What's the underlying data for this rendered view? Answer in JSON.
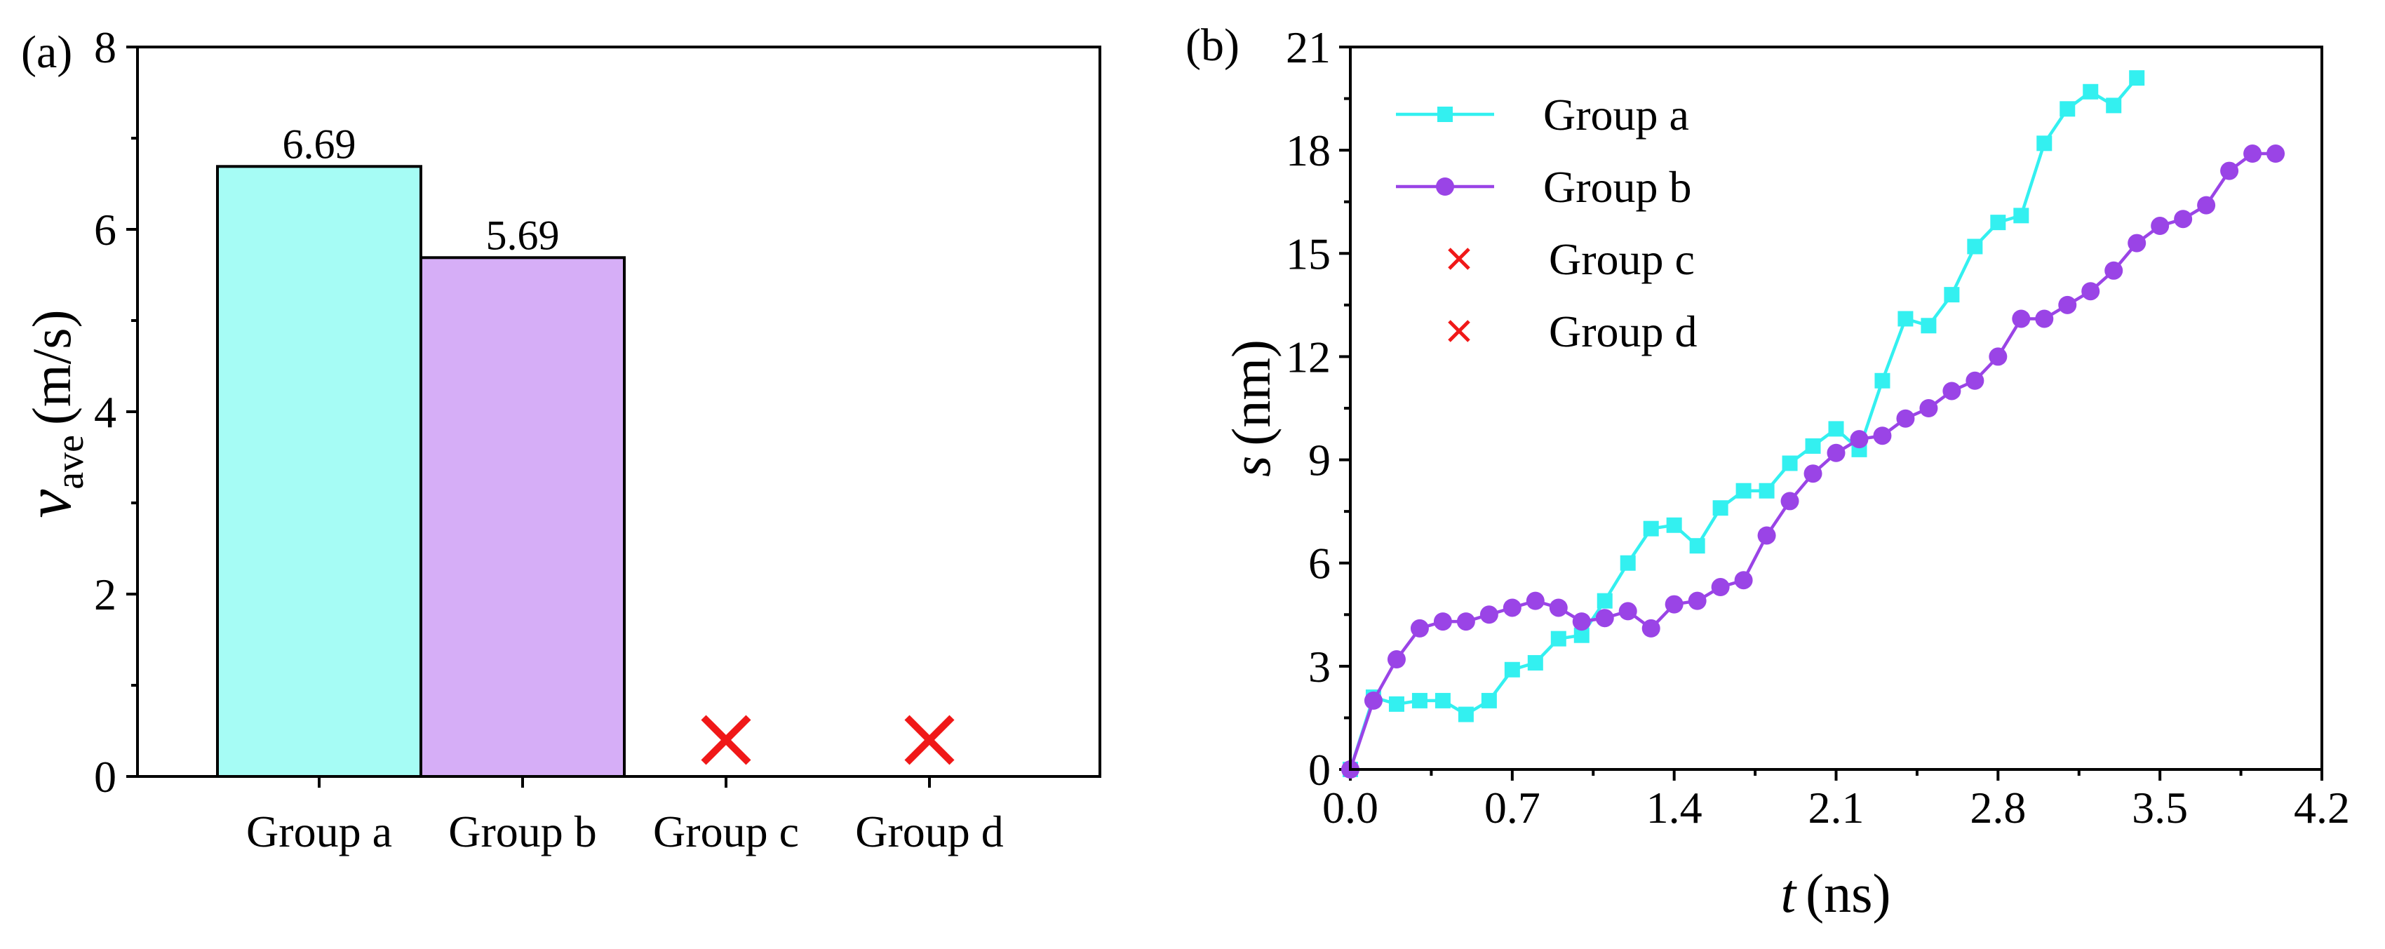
{
  "panel_a_label": "(a)",
  "panel_b_label": "(b)",
  "colors": {
    "group_a": "#33f0f0",
    "group_a_fill": "#a6fcf5",
    "group_b": "#9a44e6",
    "group_b_fill": "#d6aef7",
    "cross": "#f01818"
  },
  "chart_data": [
    {
      "type": "bar",
      "categories": [
        "Group a",
        "Group b",
        "Group c",
        "Group d"
      ],
      "values": [
        6.69,
        5.69,
        null,
        null
      ],
      "data_labels": [
        "6.69",
        "5.69",
        "",
        ""
      ],
      "failed_markers": [
        {
          "category": "Group c",
          "y": 0.4
        },
        {
          "category": "Group d",
          "y": 0.4
        }
      ],
      "ylabel_main": "v",
      "ylabel_sub": "ave",
      "ylabel_unit": "(m/s)",
      "ylim": [
        0,
        8
      ],
      "yticks": [
        0,
        2,
        4,
        6,
        8
      ],
      "ytick_labels": [
        "0",
        "2",
        "4",
        "6",
        "8"
      ]
    },
    {
      "type": "line",
      "xlabel_var": "t",
      "xlabel_unit": "(ns)",
      "ylabel_var": "s",
      "ylabel_unit": "(nm)",
      "xlim": [
        0,
        4.2
      ],
      "ylim": [
        0,
        21
      ],
      "xticks": [
        0,
        0.7,
        1.4,
        2.1,
        2.8,
        3.5,
        4.2
      ],
      "xtick_labels": [
        "0.0",
        "0.7",
        "1.4",
        "2.1",
        "2.8",
        "3.5",
        "4.2"
      ],
      "yticks": [
        0,
        3,
        6,
        9,
        12,
        15,
        18,
        21
      ],
      "ytick_labels": [
        "0",
        "3",
        "6",
        "9",
        "12",
        "15",
        "18",
        "21"
      ],
      "legend_position": "top-left",
      "series": [
        {
          "name": "Group a",
          "marker": "square",
          "x": [
            0,
            0.1,
            0.2,
            0.3,
            0.4,
            0.5,
            0.6,
            0.7,
            0.8,
            0.9,
            1.0,
            1.1,
            1.2,
            1.3,
            1.4,
            1.5,
            1.6,
            1.7,
            1.8,
            1.9,
            2.0,
            2.1,
            2.2,
            2.3,
            2.4,
            2.5,
            2.6,
            2.7,
            2.8,
            2.9,
            3.0,
            3.1,
            3.2,
            3.3,
            3.4
          ],
          "y": [
            0,
            2.1,
            1.9,
            2.0,
            2.0,
            1.6,
            2.0,
            2.9,
            3.1,
            3.8,
            3.9,
            4.9,
            6.0,
            7.0,
            7.1,
            6.5,
            7.6,
            8.1,
            8.1,
            8.9,
            9.4,
            9.9,
            9.3,
            11.3,
            13.1,
            12.9,
            13.8,
            15.2,
            15.9,
            16.1,
            18.2,
            19.2,
            19.7,
            19.3,
            20.1
          ]
        },
        {
          "name": "Group b",
          "marker": "circle",
          "x": [
            0,
            0.1,
            0.2,
            0.3,
            0.4,
            0.5,
            0.6,
            0.7,
            0.8,
            0.9,
            1.0,
            1.1,
            1.2,
            1.3,
            1.4,
            1.5,
            1.6,
            1.7,
            1.8,
            1.9,
            2.0,
            2.1,
            2.2,
            2.3,
            2.4,
            2.5,
            2.6,
            2.7,
            2.8,
            2.9,
            3.0,
            3.1,
            3.2,
            3.3,
            3.4,
            3.5,
            3.6,
            3.7,
            3.8,
            3.9,
            4.0
          ],
          "y": [
            0,
            2.0,
            3.2,
            4.1,
            4.3,
            4.3,
            4.5,
            4.7,
            4.9,
            4.7,
            4.3,
            4.4,
            4.6,
            4.1,
            4.8,
            4.9,
            5.3,
            5.5,
            6.8,
            7.8,
            8.6,
            9.2,
            9.6,
            9.7,
            10.2,
            10.5,
            11.0,
            11.3,
            12.0,
            13.1,
            13.1,
            13.5,
            13.9,
            14.5,
            15.3,
            15.8,
            16.0,
            16.4,
            17.4,
            17.9,
            17.9
          ]
        },
        {
          "name": "Group c",
          "marker": "x",
          "x": [],
          "y": []
        },
        {
          "name": "Group d",
          "marker": "x",
          "x": [],
          "y": []
        }
      ]
    }
  ]
}
